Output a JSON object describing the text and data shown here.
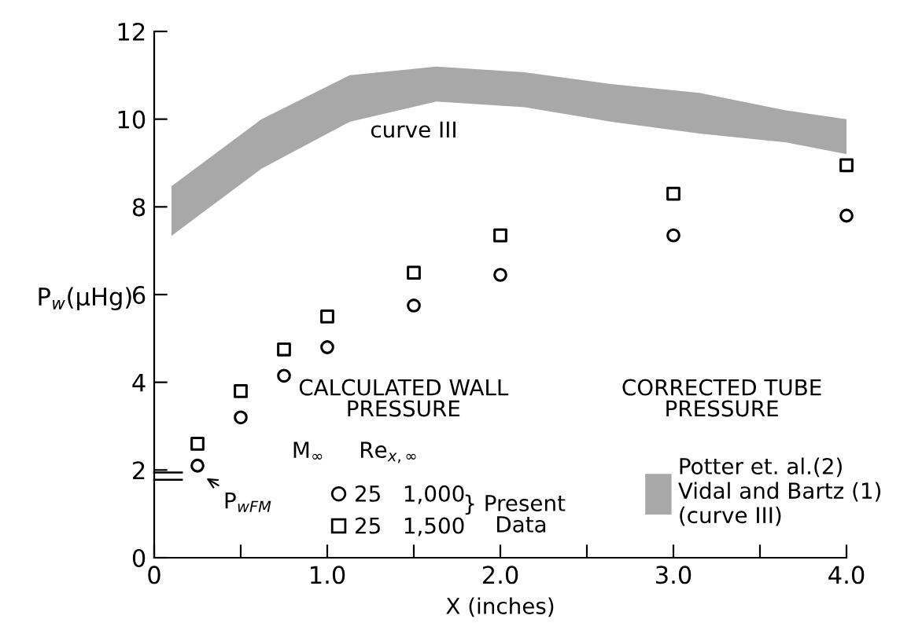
{
  "chart_data": {
    "type": "scatter",
    "xlabel": "X (inches)",
    "ylabel": "P$_{w}$(μHg)",
    "xlim": [
      0,
      4
    ],
    "ylim": [
      0,
      12
    ],
    "xticks": [
      0,
      {
        "value": 0.5,
        "label": null
      },
      {
        "value": 1,
        "label": "1.0"
      },
      {
        "value": 1.5,
        "label": null
      },
      {
        "value": 2,
        "label": "2.0"
      },
      {
        "value": 2.5,
        "label": null
      },
      {
        "value": 3,
        "label": "3.0"
      },
      {
        "value": 3.5,
        "label": null
      },
      {
        "value": 4,
        "label": "4.0"
      }
    ],
    "yticks": [
      0,
      2,
      4,
      6,
      8,
      10,
      12
    ],
    "grid": false,
    "legend": "bottom",
    "series": [
      {
        "type": "line",
        "name": "Potter et. al.(2)\nVidal and Bartz (1)\n(curve III)",
        "color": "#a8a8a8",
        "x": [
          0.1,
          0.62,
          1.13,
          1.63,
          2.14,
          2.64,
          3.15,
          3.65,
          4.0
        ],
        "values": [
          null,
          null,
          null,
          null,
          null,
          null,
          null,
          null,
          null
        ],
        "upper": [
          8.47,
          10.0,
          11.0,
          11.2,
          11.07,
          10.8,
          10.6,
          10.2,
          10.0
        ],
        "lower": [
          7.34,
          8.87,
          9.94,
          10.4,
          10.27,
          9.94,
          9.67,
          9.47,
          9.2
        ]
      },
      {
        "name": "25   1,000",
        "color": "#000000",
        "marker": "circle",
        "x": [
          0.25,
          0.5,
          0.75,
          1.0,
          1.5,
          2.0,
          3.0,
          4.0
        ],
        "values": [
          2.1,
          3.2,
          4.15,
          4.8,
          5.75,
          6.45,
          7.35,
          7.8
        ]
      },
      {
        "name": "25   1,500",
        "color": "#000000",
        "marker": "square",
        "x": [
          0.25,
          0.5,
          0.75,
          1.0,
          1.5,
          2.0,
          3.0,
          4.0
        ],
        "values": [
          2.6,
          3.8,
          4.75,
          5.5,
          6.5,
          7.35,
          8.3,
          8.95
        ]
      }
    ],
    "annotations": [
      "curve III",
      "P$_{wFM}$",
      "CALCULATED WALL\nPRESSURE",
      "M$_{∞}$     Re$_{x,∞}$",
      "} Present\n  Data",
      "CORRECTED TUBE\nPRESSURE"
    ]
  }
}
